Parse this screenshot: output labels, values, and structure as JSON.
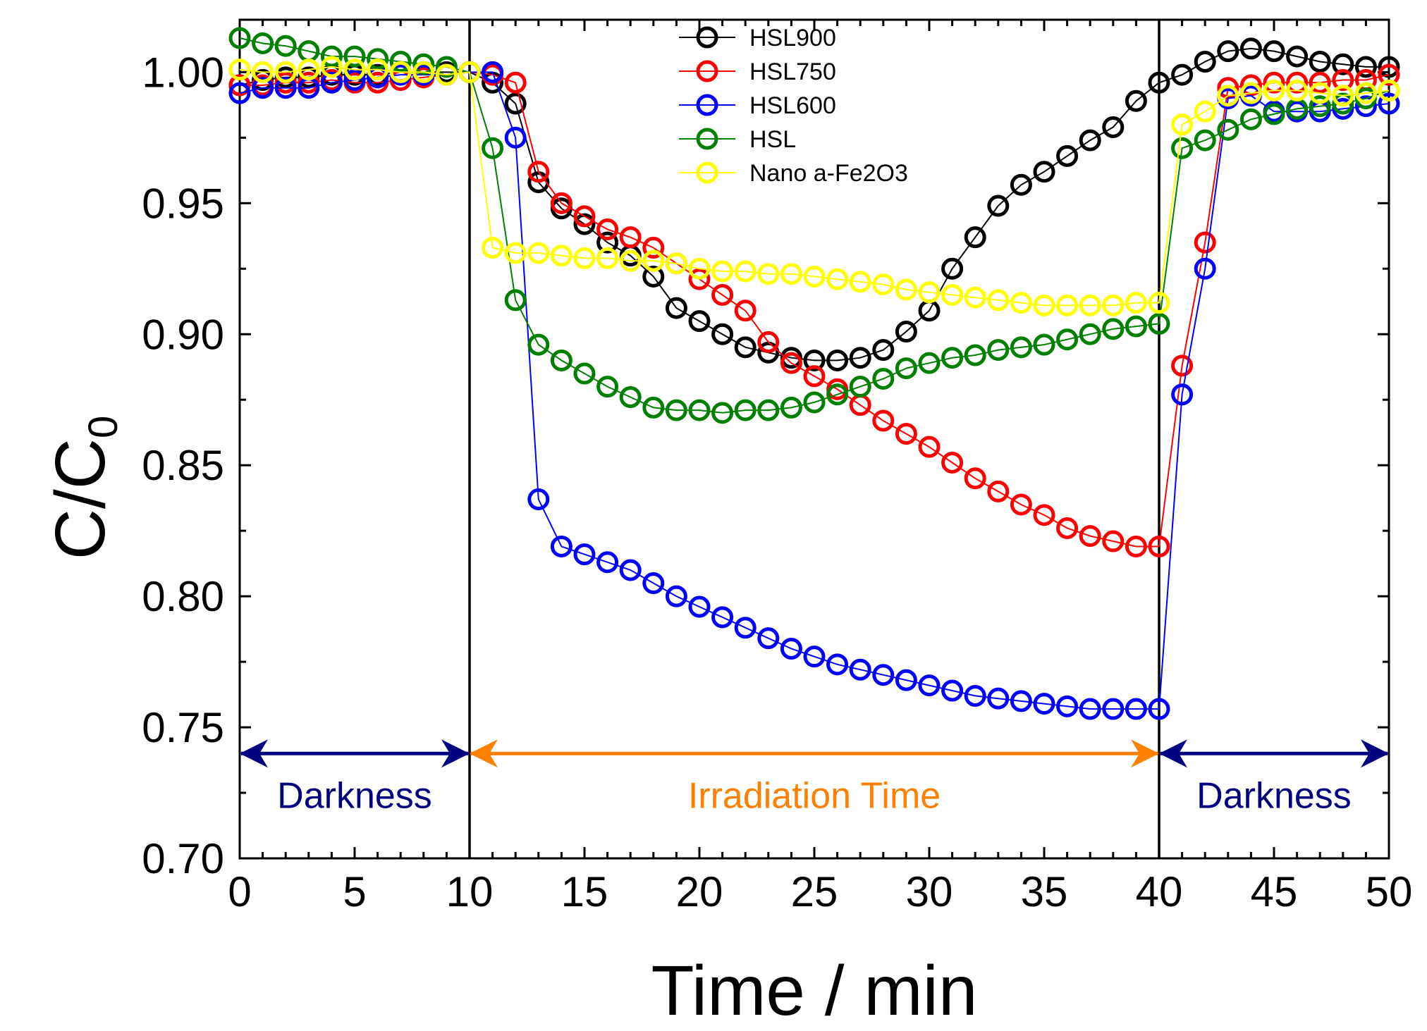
{
  "chart_data": {
    "type": "line",
    "title": "",
    "xlabel": "Time / min",
    "ylabel": "C/C0",
    "ylabel_main": "C/C",
    "ylabel_sub": "0",
    "xlim": [
      0,
      50
    ],
    "ylim": [
      0.7,
      1.02
    ],
    "xticks": [
      0,
      5,
      10,
      15,
      20,
      25,
      30,
      35,
      40,
      45,
      50
    ],
    "xtick_labels": [
      "0",
      "5",
      "10",
      "15",
      "20",
      "25",
      "30",
      "35",
      "40",
      "45",
      "50"
    ],
    "yticks": [
      0.7,
      0.75,
      0.8,
      0.85,
      0.9,
      0.95,
      1.0
    ],
    "ytick_labels": [
      "0.70",
      "0.75",
      "0.80",
      "0.85",
      "0.90",
      "0.95",
      "1.00"
    ],
    "grid": false,
    "legend_position": "top-center",
    "vertical_lines": [
      10,
      40
    ],
    "annotations": [
      {
        "label": "Darkness",
        "x_from": 0,
        "x_to": 10,
        "arrow_y": 0.74,
        "color": "#000080"
      },
      {
        "label": "Irradiation Time",
        "x_from": 10,
        "x_to": 40,
        "arrow_y": 0.74,
        "color": "#FF8000"
      },
      {
        "label": "Darkness",
        "x_from": 40,
        "x_to": 50,
        "arrow_y": 0.74,
        "color": "#000080"
      }
    ],
    "series": [
      {
        "name": "HSL900",
        "color": "#000000",
        "x": [
          0,
          1,
          2,
          3,
          4,
          5,
          6,
          7,
          8,
          9,
          10,
          11,
          12,
          13,
          14,
          15,
          16,
          17,
          18,
          19,
          20,
          21,
          22,
          23,
          24,
          25,
          26,
          27,
          28,
          29,
          30,
          31,
          32,
          33,
          34,
          35,
          36,
          37,
          38,
          39,
          40,
          41,
          42,
          43,
          44,
          45,
          46,
          47,
          48,
          49,
          50
        ],
        "values": [
          0.995,
          0.997,
          0.998,
          0.998,
          0.999,
          0.999,
          0.999,
          1.0,
          1.0,
          1.0,
          1.0,
          0.996,
          0.988,
          0.958,
          0.948,
          0.942,
          0.935,
          0.93,
          0.922,
          0.91,
          0.905,
          0.9,
          0.895,
          0.893,
          0.891,
          0.89,
          0.89,
          0.891,
          0.894,
          0.901,
          0.909,
          0.925,
          0.937,
          0.949,
          0.957,
          0.962,
          0.968,
          0.974,
          0.979,
          0.989,
          0.996,
          0.999,
          1.004,
          1.008,
          1.009,
          1.008,
          1.006,
          1.004,
          1.003,
          1.002,
          1.002
        ]
      },
      {
        "name": "HSL750",
        "color": "#FF0000",
        "x": [
          0,
          1,
          2,
          3,
          4,
          5,
          6,
          7,
          8,
          9,
          10,
          11,
          12,
          13,
          14,
          15,
          16,
          17,
          18,
          19,
          20,
          21,
          22,
          23,
          24,
          25,
          26,
          27,
          28,
          29,
          30,
          31,
          32,
          33,
          34,
          35,
          36,
          37,
          38,
          39,
          40,
          41,
          42,
          43,
          44,
          45,
          46,
          47,
          48,
          49,
          50
        ],
        "values": [
          0.995,
          0.995,
          0.996,
          0.996,
          0.997,
          0.996,
          0.996,
          0.997,
          0.998,
          0.999,
          1.0,
          0.999,
          0.996,
          0.962,
          0.95,
          0.945,
          0.94,
          0.937,
          0.933,
          0.927,
          0.921,
          0.915,
          0.909,
          0.897,
          0.889,
          0.884,
          0.879,
          0.873,
          0.867,
          0.862,
          0.857,
          0.851,
          0.845,
          0.84,
          0.835,
          0.831,
          0.826,
          0.823,
          0.821,
          0.819,
          0.819,
          0.888,
          0.935,
          0.994,
          0.995,
          0.996,
          0.996,
          0.996,
          0.997,
          0.997,
          0.999
        ]
      },
      {
        "name": "HSL600",
        "color": "#0000FF",
        "x": [
          0,
          1,
          2,
          3,
          4,
          5,
          6,
          7,
          8,
          9,
          10,
          11,
          12,
          13,
          14,
          15,
          16,
          17,
          18,
          19,
          20,
          21,
          22,
          23,
          24,
          25,
          26,
          27,
          28,
          29,
          30,
          31,
          32,
          33,
          34,
          35,
          36,
          37,
          38,
          39,
          40,
          41,
          42,
          43,
          44,
          45,
          46,
          47,
          48,
          49,
          50
        ],
        "values": [
          0.992,
          0.994,
          0.994,
          0.994,
          0.996,
          0.997,
          0.998,
          0.999,
          0.999,
          0.999,
          1.0,
          1.0,
          0.975,
          0.837,
          0.819,
          0.816,
          0.813,
          0.81,
          0.805,
          0.8,
          0.796,
          0.792,
          0.788,
          0.784,
          0.78,
          0.777,
          0.774,
          0.772,
          0.77,
          0.768,
          0.766,
          0.764,
          0.762,
          0.761,
          0.76,
          0.759,
          0.758,
          0.757,
          0.757,
          0.757,
          0.757,
          0.877,
          0.925,
          0.99,
          0.991,
          0.985,
          0.985,
          0.985,
          0.986,
          0.987,
          0.988
        ]
      },
      {
        "name": "HSL",
        "color": "#008000",
        "x": [
          0,
          1,
          2,
          3,
          4,
          5,
          6,
          7,
          8,
          9,
          10,
          11,
          12,
          13,
          14,
          15,
          16,
          17,
          18,
          19,
          20,
          21,
          22,
          23,
          24,
          25,
          26,
          27,
          28,
          29,
          30,
          31,
          32,
          33,
          34,
          35,
          36,
          37,
          38,
          39,
          40,
          41,
          42,
          43,
          44,
          45,
          46,
          47,
          48,
          49,
          50
        ],
        "values": [
          1.013,
          1.011,
          1.01,
          1.008,
          1.006,
          1.006,
          1.005,
          1.004,
          1.003,
          1.002,
          1.0,
          0.971,
          0.913,
          0.896,
          0.89,
          0.885,
          0.88,
          0.876,
          0.872,
          0.871,
          0.871,
          0.87,
          0.871,
          0.871,
          0.872,
          0.874,
          0.877,
          0.88,
          0.883,
          0.887,
          0.889,
          0.891,
          0.892,
          0.894,
          0.895,
          0.896,
          0.898,
          0.9,
          0.902,
          0.903,
          0.904,
          0.971,
          0.974,
          0.978,
          0.982,
          0.984,
          0.986,
          0.987,
          0.988,
          0.99,
          0.993
        ]
      },
      {
        "name": "Nano a-Fe2O3",
        "color": "#FFFF00",
        "x": [
          0,
          1,
          2,
          3,
          4,
          5,
          6,
          7,
          8,
          9,
          10,
          11,
          12,
          13,
          14,
          15,
          16,
          17,
          18,
          19,
          20,
          21,
          22,
          23,
          24,
          25,
          26,
          27,
          28,
          29,
          30,
          31,
          32,
          33,
          34,
          35,
          36,
          37,
          38,
          39,
          40,
          41,
          42,
          43,
          44,
          45,
          46,
          47,
          48,
          49,
          50
        ],
        "values": [
          1.001,
          1.0,
          1.0,
          1.001,
          1.002,
          1.001,
          1.001,
          1.0,
          1.0,
          0.999,
          1.0,
          0.933,
          0.931,
          0.931,
          0.93,
          0.929,
          0.929,
          0.928,
          0.928,
          0.927,
          0.925,
          0.924,
          0.924,
          0.923,
          0.923,
          0.922,
          0.921,
          0.92,
          0.919,
          0.917,
          0.916,
          0.915,
          0.914,
          0.913,
          0.912,
          0.911,
          0.911,
          0.911,
          0.911,
          0.912,
          0.912,
          0.98,
          0.985,
          0.991,
          0.992,
          0.993,
          0.993,
          0.992,
          0.991,
          0.992,
          0.993
        ]
      }
    ]
  }
}
